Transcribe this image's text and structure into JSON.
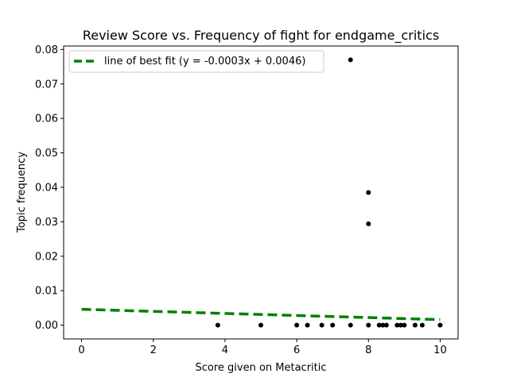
{
  "chart_data": {
    "type": "scatter",
    "title": "Review Score vs. Frequency of fight for endgame_critics",
    "xlabel": "Score given on Metacritic",
    "ylabel": "Topic frequency",
    "xlim": [
      -0.5,
      10.5
    ],
    "ylim": [
      -0.004,
      0.081
    ],
    "xticks": [
      0,
      2,
      4,
      6,
      8,
      10
    ],
    "xtick_labels": [
      "0",
      "2",
      "4",
      "6",
      "8",
      "10"
    ],
    "yticks": [
      0.0,
      0.01,
      0.02,
      0.03,
      0.04,
      0.05,
      0.06,
      0.07,
      0.08
    ],
    "ytick_labels": [
      "0.00",
      "0.01",
      "0.02",
      "0.03",
      "0.04",
      "0.05",
      "0.06",
      "0.07",
      "0.08"
    ],
    "grid": false,
    "legend_position": "top-left",
    "colors": {
      "points": "#000000",
      "fit_line": "#008000"
    },
    "points": [
      {
        "x": 3.8,
        "y": 0.0
      },
      {
        "x": 5.0,
        "y": 0.0
      },
      {
        "x": 6.0,
        "y": 0.0
      },
      {
        "x": 6.3,
        "y": 0.0
      },
      {
        "x": 6.7,
        "y": 0.0
      },
      {
        "x": 7.0,
        "y": 0.0
      },
      {
        "x": 7.5,
        "y": 0.0
      },
      {
        "x": 8.0,
        "y": 0.0
      },
      {
        "x": 8.3,
        "y": 0.0
      },
      {
        "x": 8.4,
        "y": 0.0
      },
      {
        "x": 8.5,
        "y": 0.0
      },
      {
        "x": 8.8,
        "y": 0.0
      },
      {
        "x": 8.9,
        "y": 0.0
      },
      {
        "x": 9.0,
        "y": 0.0
      },
      {
        "x": 9.3,
        "y": 0.0
      },
      {
        "x": 9.5,
        "y": 0.0
      },
      {
        "x": 10.0,
        "y": 0.0
      },
      {
        "x": 7.5,
        "y": 0.077
      },
      {
        "x": 8.0,
        "y": 0.0385
      },
      {
        "x": 8.0,
        "y": 0.0294
      }
    ],
    "series": [
      {
        "name": "line of best fit (y = -0.0003x + 0.0046)",
        "slope": -0.0003,
        "intercept": 0.0046,
        "x_range": [
          0,
          10
        ]
      }
    ]
  }
}
